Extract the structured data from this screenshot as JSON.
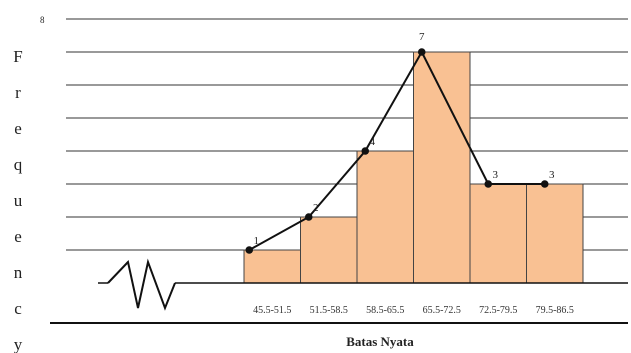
{
  "chart_data": {
    "type": "bar",
    "categories": [
      "45.5-51.5",
      "51.5-58.5",
      "58.5-65.5",
      "65.5-72.5",
      "72.5-79.5",
      "79.5-86.5"
    ],
    "values": [
      1,
      2,
      4,
      7,
      3,
      3
    ],
    "polygon_values": [
      1,
      2,
      4,
      7,
      3,
      3
    ],
    "xlabel": "Batas Nyata",
    "ylabel": "Frequency",
    "ylim": [
      0,
      8
    ],
    "y_ticks": [
      "8"
    ],
    "grid": true,
    "axis_break": true,
    "colors": {
      "bar_fill": "#f9c193",
      "bar_stroke": "#444444",
      "line": "#111111",
      "grid": "#333333"
    }
  }
}
